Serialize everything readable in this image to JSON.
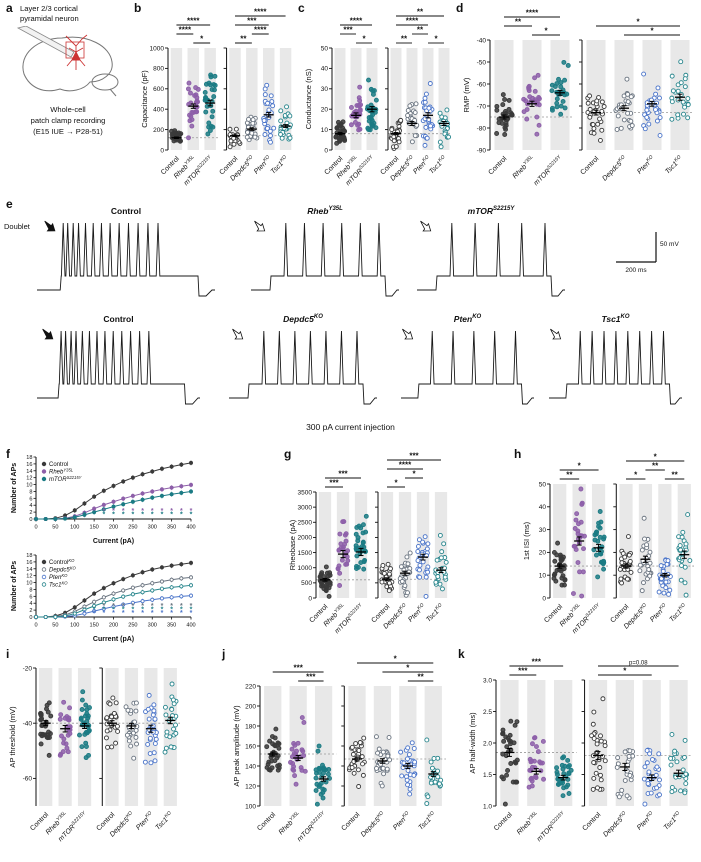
{
  "figure": {
    "panel_letters": {
      "a": "a",
      "b": "b",
      "c": "c",
      "d": "d",
      "e": "e",
      "f": "f",
      "g": "g",
      "h": "h",
      "i": "i",
      "j": "j",
      "k": "k"
    }
  },
  "colors": {
    "control": "#3a3a3a",
    "rheb": "#8d5fa9",
    "mtor": "#1b7b84",
    "depdc5": "#69737f",
    "pten": "#4a74c9",
    "tsc1": "#27858c",
    "band": "#e8e8e8",
    "dashed_line": "#999999"
  },
  "panel_a": {
    "title_line1": "Layer 2/3 cortical",
    "title_line2": "pyramidal neuron",
    "caption_line1": "Whole-cell",
    "caption_line2": "patch clamp recording",
    "caption_line3": "(E15 IUE → P28-51)"
  },
  "groups": {
    "set1": [
      {
        "key": "control",
        "base": "Control",
        "sup": "",
        "italic": false,
        "filled": true,
        "color": "#3a3a3a"
      },
      {
        "key": "rheb",
        "base": "Rheb",
        "sup": "Y35L",
        "italic": true,
        "filled": true,
        "color": "#8d5fa9"
      },
      {
        "key": "mtor",
        "base": "mTOR",
        "sup": "S2215Y",
        "italic": true,
        "filled": true,
        "color": "#1b7b84"
      }
    ],
    "set2": [
      {
        "key": "control_ko",
        "base": "Control",
        "sup": "",
        "italic": false,
        "filled": false,
        "color": "#3a3a3a"
      },
      {
        "key": "depdc5",
        "base": "Depdc5",
        "sup": "KO",
        "italic": true,
        "filled": false,
        "color": "#69737f"
      },
      {
        "key": "pten",
        "base": "Pten",
        "sup": "KO",
        "italic": true,
        "filled": false,
        "color": "#4a74c9"
      },
      {
        "key": "tsc1",
        "base": "Tsc1",
        "sup": "KO",
        "italic": true,
        "filled": false,
        "color": "#27858c"
      }
    ]
  },
  "chart_data": [
    {
      "id": "b",
      "type": "scatter",
      "ylabel": "Capacitance (pF)",
      "ylim": [
        0,
        1000
      ],
      "yticks": [
        0,
        200,
        400,
        600,
        800,
        1000
      ],
      "groups_left": [
        "Control",
        "Rheb Y35L",
        "mTOR S2215Y"
      ],
      "groups_right": [
        "Control",
        "Depdc5 KO",
        "Pten KO",
        "Tsc1 KO"
      ],
      "left": {
        "n": [
          31,
          26,
          30
        ],
        "mean": [
          120,
          430,
          460
        ],
        "sd": [
          40,
          110,
          150
        ],
        "sig": [
          {
            "a": 1,
            "b": 2,
            "label": "*",
            "row": 0
          },
          {
            "a": 0,
            "b": 1,
            "label": "****",
            "row": 1
          },
          {
            "a": 0,
            "b": 2,
            "label": "****",
            "row": 2
          }
        ]
      },
      "right": {
        "n": [
          30,
          28,
          30,
          26
        ],
        "mean": [
          140,
          205,
          345,
          235
        ],
        "sd": [
          45,
          65,
          120,
          70
        ],
        "sig": [
          {
            "a": 0,
            "b": 1,
            "label": "**",
            "row": 0
          },
          {
            "a": 1,
            "b": 2,
            "label": "****",
            "row": 1
          },
          {
            "a": 0,
            "b": 2,
            "label": "***",
            "row": 2
          },
          {
            "a": 0,
            "b": 3,
            "label": "****",
            "row": 3
          }
        ]
      }
    },
    {
      "id": "c",
      "type": "scatter",
      "ylabel": "Conductance (nS)",
      "ylim": [
        0,
        50
      ],
      "yticks": [
        0,
        10,
        20,
        30,
        40,
        50
      ],
      "left": {
        "n": [
          31,
          26,
          30
        ],
        "mean": [
          8,
          17,
          20
        ],
        "sd": [
          3,
          6,
          7
        ],
        "sig": [
          {
            "a": 1,
            "b": 2,
            "label": "*",
            "row": 0
          },
          {
            "a": 0,
            "b": 1,
            "label": "***",
            "row": 1
          },
          {
            "a": 0,
            "b": 2,
            "label": "****",
            "row": 2
          }
        ]
      },
      "right": {
        "n": [
          30,
          28,
          30,
          26
        ],
        "mean": [
          8,
          13,
          17,
          13
        ],
        "sd": [
          3,
          5,
          7,
          5
        ],
        "sig": [
          {
            "a": 0,
            "b": 1,
            "label": "**",
            "row": 0
          },
          {
            "a": 2,
            "b": 3,
            "label": "*",
            "row": 0
          },
          {
            "a": 1,
            "b": 2,
            "label": "**",
            "row": 1
          },
          {
            "a": 0,
            "b": 2,
            "label": "****",
            "row": 2
          },
          {
            "a": 0,
            "b": 3,
            "label": "**",
            "row": 3
          }
        ]
      }
    },
    {
      "id": "d",
      "type": "scatter",
      "ylabel": "RMP (mV)",
      "ylim": [
        -90,
        -40
      ],
      "yticks": [
        -90,
        -80,
        -70,
        -60,
        -50,
        -40
      ],
      "left": {
        "n": [
          31,
          26,
          30
        ],
        "mean": [
          -75,
          -69,
          -64
        ],
        "sd": [
          5,
          6,
          6
        ],
        "sig": [
          {
            "a": 1,
            "b": 2,
            "label": "*",
            "row": 0
          },
          {
            "a": 0,
            "b": 1,
            "label": "**",
            "row": 1
          },
          {
            "a": 0,
            "b": 2,
            "label": "****",
            "row": 2
          }
        ]
      },
      "right": {
        "n": [
          30,
          28,
          30,
          26
        ],
        "mean": [
          -73,
          -71,
          -69,
          -66
        ],
        "sd": [
          6,
          6,
          6,
          7
        ],
        "sig": [
          {
            "a": 1,
            "b": 3,
            "label": "*",
            "row": 0
          },
          {
            "a": 0,
            "b": 3,
            "label": "*",
            "row": 1
          }
        ]
      }
    },
    {
      "id": "e",
      "type": "traces",
      "caption": "300 pA current injection",
      "doublet_label": "Doublet",
      "scale_v": "50 mV",
      "scale_h": "200 ms",
      "rows": [
        [
          {
            "base": "Control",
            "sup": "",
            "italic": false,
            "spikes": 13,
            "doublet": true,
            "arrow": "filled"
          },
          {
            "base": "Rheb",
            "sup": "Y35L",
            "italic": true,
            "spikes": 6,
            "doublet": false,
            "arrow": "open"
          },
          {
            "base": "mTOR",
            "sup": "S2215Y",
            "italic": true,
            "spikes": 5,
            "doublet": false,
            "arrow": "open"
          }
        ],
        [
          {
            "base": "Control",
            "sup": "",
            "italic": false,
            "spikes": 13,
            "doublet": true,
            "arrow": "filled"
          },
          {
            "base": "Depdc5",
            "sup": "KO",
            "italic": true,
            "spikes": 7,
            "doublet": false,
            "arrow": "open"
          },
          {
            "base": "Pten",
            "sup": "KO",
            "italic": true,
            "spikes": 5,
            "doublet": false,
            "arrow": "open"
          },
          {
            "base": "Tsc1",
            "sup": "KO",
            "italic": true,
            "spikes": 8,
            "doublet": false,
            "arrow": "open"
          }
        ]
      ]
    },
    {
      "id": "f",
      "type": "line",
      "xlabel": "Current (pA)",
      "ylabel": "Number of APs",
      "x": [
        0,
        25,
        50,
        75,
        100,
        125,
        150,
        175,
        200,
        225,
        250,
        275,
        300,
        325,
        350,
        375,
        400
      ],
      "top": {
        "ylim": [
          0,
          18
        ],
        "ytick_step": 2,
        "series": [
          {
            "base": "Control",
            "sup": "",
            "italic": false,
            "color": "#3a3a3a",
            "filled": true,
            "values": [
              0,
              0,
              0.2,
              1,
              2.5,
              4.5,
              6.5,
              8.2,
              9.6,
              10.9,
              12,
              13,
              13.8,
              14.6,
              15.2,
              15.8,
              16.3
            ]
          },
          {
            "base": "Rheb",
            "sup": "Y35L",
            "italic": true,
            "color": "#8d5fa9",
            "filled": true,
            "values": [
              0,
              0,
              0,
              0.2,
              0.8,
              1.8,
              3,
              4.1,
              5,
              5.9,
              6.7,
              7.4,
              8,
              8.6,
              9.1,
              9.5,
              9.9
            ]
          },
          {
            "base": "mTOR",
            "sup": "S2215Y",
            "italic": true,
            "color": "#1b7b84",
            "filled": true,
            "values": [
              0,
              0,
              0,
              0.1,
              0.5,
              1.2,
              2,
              2.8,
              3.6,
              4.3,
              5,
              5.6,
              6.2,
              6.7,
              7.2,
              7.6,
              8
            ]
          }
        ],
        "stars": [
          {
            "color": "#8d5fa9",
            "y": 1.7,
            "x_from": 150
          },
          {
            "color": "#1b7b84",
            "y": 0.7,
            "x_from": 125
          }
        ]
      },
      "bottom": {
        "ylim": [
          0,
          18
        ],
        "ytick_step": 2,
        "series": [
          {
            "base": "Control",
            "sup": "KO",
            "italic": false,
            "color": "#3a3a3a",
            "filled": true,
            "values": [
              0,
              0,
              0.3,
              1.2,
              2.8,
              4.8,
              6.8,
              8.4,
              9.8,
              11,
              12.1,
              13,
              13.8,
              14.4,
              14.9,
              15.3,
              15.7
            ]
          },
          {
            "base": "Depdc5",
            "sup": "KO",
            "italic": true,
            "color": "#69737f",
            "filled": false,
            "values": [
              0,
              0,
              0.1,
              0.6,
              1.6,
              3,
              4.4,
              5.7,
              6.8,
              7.7,
              8.5,
              9.2,
              9.8,
              10.3,
              10.8,
              11.2,
              11.5
            ]
          },
          {
            "base": "Pten",
            "sup": "KO",
            "italic": true,
            "color": "#4a74c9",
            "filled": false,
            "values": [
              0,
              0,
              0,
              0.1,
              0.4,
              1,
              1.7,
              2.4,
              3,
              3.6,
              4.1,
              4.6,
              5,
              5.4,
              5.7,
              6,
              6.2
            ]
          },
          {
            "base": "Tsc1",
            "sup": "KO",
            "italic": true,
            "color": "#27858c",
            "filled": false,
            "values": [
              0,
              0,
              0,
              0.3,
              1,
              2.1,
              3.2,
              4.2,
              5.1,
              5.9,
              6.6,
              7.2,
              7.7,
              8.2,
              8.6,
              8.9,
              9.2
            ]
          }
        ],
        "stars": [
          {
            "color": "#69737f",
            "y": 2.6,
            "x_from": 175
          },
          {
            "color": "#27858c",
            "y": 1.6,
            "x_from": 150
          },
          {
            "color": "#4a74c9",
            "y": 0.6,
            "x_from": 125
          }
        ]
      }
    },
    {
      "id": "g",
      "type": "scatter",
      "ylabel": "Rheobase (pA)",
      "ylim": [
        0,
        3500
      ],
      "yticks": [
        0,
        500,
        1000,
        1500,
        2000,
        2500,
        3000,
        3500
      ],
      "left": {
        "n": [
          31,
          26,
          30
        ],
        "mean": [
          600,
          1450,
          1520
        ],
        "sd": [
          250,
          600,
          650
        ],
        "sig": [
          {
            "a": 0,
            "b": 1,
            "label": "***",
            "row": 0
          },
          {
            "a": 0,
            "b": 2,
            "label": "***",
            "row": 1
          }
        ]
      },
      "right": {
        "n": [
          30,
          28,
          30,
          26
        ],
        "mean": [
          620,
          820,
          1350,
          920
        ],
        "sd": [
          260,
          350,
          520,
          400
        ],
        "sig": [
          {
            "a": 0,
            "b": 1,
            "label": "*",
            "row": 0
          },
          {
            "a": 1,
            "b": 2,
            "label": "*",
            "row": 1
          },
          {
            "a": 0,
            "b": 2,
            "label": "****",
            "row": 2
          },
          {
            "a": 0,
            "b": 3,
            "label": "***",
            "row": 3
          }
        ]
      }
    },
    {
      "id": "h",
      "type": "scatter",
      "ylabel": "1st ISI (ms)",
      "ylim": [
        0,
        50
      ],
      "yticks": [
        0,
        10,
        20,
        30,
        40,
        50
      ],
      "left": {
        "n": [
          30,
          25,
          28
        ],
        "mean": [
          14,
          25,
          22
        ],
        "sd": [
          5,
          9,
          8
        ],
        "sig": [
          {
            "a": 0,
            "b": 1,
            "label": "**",
            "row": 0
          },
          {
            "a": 0,
            "b": 2,
            "label": "*",
            "row": 1
          }
        ]
      },
      "right": {
        "n": [
          30,
          27,
          29,
          25
        ],
        "mean": [
          14,
          17,
          10,
          19
        ],
        "sd": [
          5,
          7,
          4,
          8
        ],
        "sig": [
          {
            "a": 0,
            "b": 1,
            "label": "*",
            "row": 0
          },
          {
            "a": 2,
            "b": 3,
            "label": "**",
            "row": 0
          },
          {
            "a": 1,
            "b": 2,
            "label": "**",
            "row": 1
          },
          {
            "a": 0,
            "b": 3,
            "label": "*",
            "row": 2
          }
        ]
      }
    },
    {
      "id": "i",
      "type": "scatter",
      "ylabel": "AP threshold (mV)",
      "ylim": [
        -70,
        -20
      ],
      "yticks": [
        -60,
        -40,
        -20
      ],
      "left": {
        "n": [
          31,
          26,
          30
        ],
        "mean": [
          -40,
          -42,
          -41
        ],
        "sd": [
          5,
          6,
          5
        ],
        "sig": []
      },
      "right": {
        "n": [
          30,
          28,
          30,
          26
        ],
        "mean": [
          -40,
          -41,
          -42,
          -39
        ],
        "sd": [
          5,
          5,
          7,
          6
        ],
        "sig": []
      }
    },
    {
      "id": "j",
      "type": "scatter",
      "ylabel": "AP peak amplitude (mV)",
      "ylim": [
        100,
        220
      ],
      "yticks": [
        100,
        120,
        140,
        160,
        180,
        200,
        220
      ],
      "left": {
        "n": [
          31,
          26,
          30
        ],
        "mean": [
          152,
          148,
          127
        ],
        "sd": [
          11,
          13,
          12
        ],
        "sig": [
          {
            "a": 1,
            "b": 2,
            "label": "***",
            "row": 0
          },
          {
            "a": 0,
            "b": 2,
            "label": "***",
            "row": 1
          }
        ]
      },
      "right": {
        "n": [
          30,
          28,
          30,
          26
        ],
        "mean": [
          147,
          145,
          140,
          132
        ],
        "sd": [
          11,
          12,
          14,
          12
        ],
        "sig": [
          {
            "a": 2,
            "b": 3,
            "label": "**",
            "row": 0
          },
          {
            "a": 1,
            "b": 3,
            "label": "*",
            "row": 1
          },
          {
            "a": 0,
            "b": 3,
            "label": "*",
            "row": 2
          }
        ]
      }
    },
    {
      "id": "k",
      "type": "scatter",
      "ylabel": "AP half-width (ms)",
      "ylim": [
        1,
        3
      ],
      "yticks": [
        1,
        1.5,
        2,
        2.5,
        3
      ],
      "ydecimals": 1,
      "left": {
        "n": [
          31,
          26,
          30
        ],
        "mean": [
          1.85,
          1.55,
          1.45
        ],
        "sd": [
          0.35,
          0.22,
          0.2
        ],
        "sig": [
          {
            "a": 0,
            "b": 1,
            "label": "***",
            "row": 0
          },
          {
            "a": 0,
            "b": 2,
            "label": "***",
            "row": 1
          }
        ]
      },
      "right": {
        "n": [
          30,
          28,
          30,
          26
        ],
        "mean": [
          1.8,
          1.62,
          1.45,
          1.52
        ],
        "sd": [
          0.35,
          0.3,
          0.24,
          0.25
        ],
        "sig": [
          {
            "a": 0,
            "b": 2,
            "label": "*",
            "row": 0
          },
          {
            "a": 0,
            "b": 3,
            "label": "p=0.08",
            "row": 1
          }
        ]
      }
    }
  ]
}
